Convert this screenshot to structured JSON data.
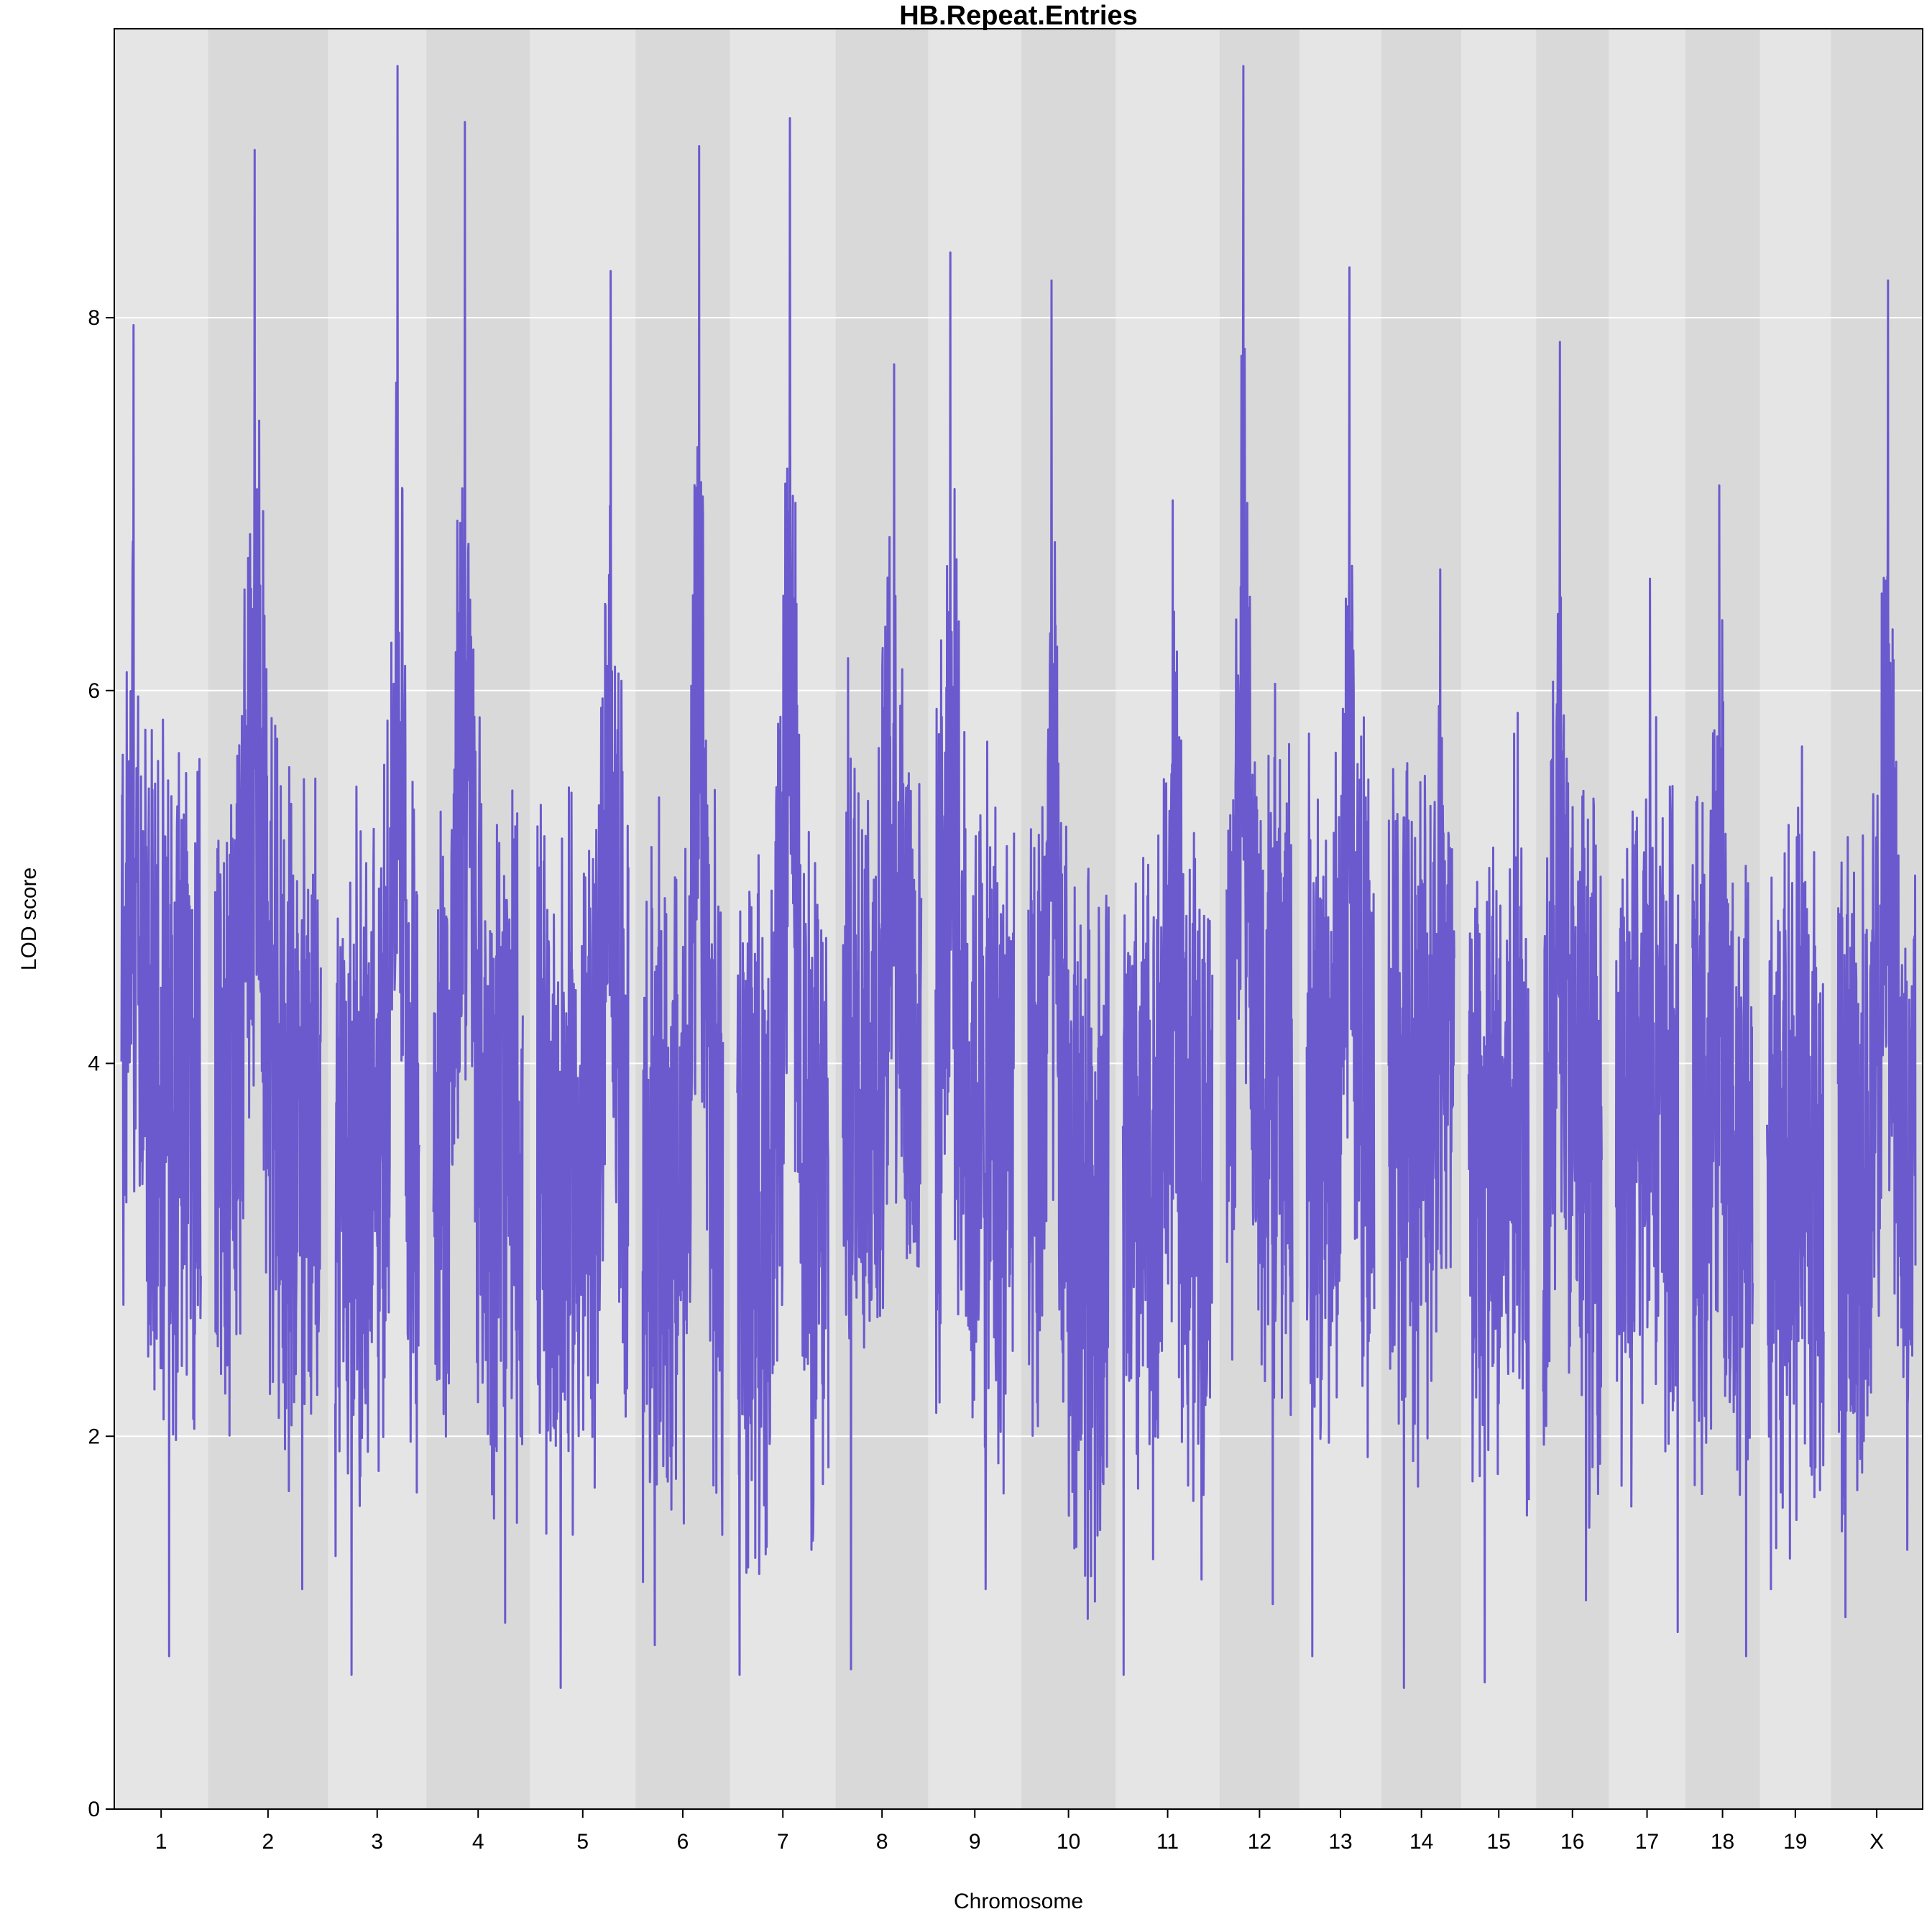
{
  "chart_data": {
    "type": "line",
    "title": "HB.Repeat.Entries",
    "xlabel": "Chromosome",
    "ylabel": "LOD score",
    "ylim": [
      0,
      9.55
    ],
    "yticks": [
      0,
      2,
      4,
      6,
      8
    ],
    "grid": "horizontal",
    "colors": {
      "line": "#6a5acd",
      "band_light": "#e5e5e5",
      "band_dark": "#d9d9d9",
      "gridline": "#ffffff"
    },
    "chromosomes": [
      {
        "label": "1",
        "range": [
          0.5,
          52
        ],
        "peak": 7.96,
        "min": 0.82
      },
      {
        "label": "2",
        "range": [
          52,
          118
        ],
        "peak": 8.9,
        "min": 1.18
      },
      {
        "label": "3",
        "range": [
          118,
          172
        ],
        "peak": 9.35,
        "min": 0.72
      },
      {
        "label": "4",
        "range": [
          172,
          229
        ],
        "peak": 9.05,
        "min": 1.0
      },
      {
        "label": "5",
        "range": [
          229,
          287
        ],
        "peak": 8.25,
        "min": 0.65
      },
      {
        "label": "6",
        "range": [
          287,
          339
        ],
        "peak": 8.92,
        "min": 0.88
      },
      {
        "label": "7",
        "range": [
          339,
          397
        ],
        "peak": 9.07,
        "min": 0.72
      },
      {
        "label": "8",
        "range": [
          397,
          448
        ],
        "peak": 7.75,
        "min": 0.75
      },
      {
        "label": "9",
        "range": [
          448,
          499
        ],
        "peak": 8.35,
        "min": 1.18
      },
      {
        "label": "10",
        "range": [
          499,
          551
        ],
        "peak": 8.2,
        "min": 1.02
      },
      {
        "label": "11",
        "range": [
          551,
          608
        ],
        "peak": 7.02,
        "min": 0.72
      },
      {
        "label": "12",
        "range": [
          608,
          652
        ],
        "peak": 9.35,
        "min": 1.1
      },
      {
        "label": "13",
        "range": [
          652,
          697
        ],
        "peak": 8.27,
        "min": 0.82
      },
      {
        "label": "14",
        "range": [
          697,
          741
        ],
        "peak": 6.65,
        "min": 0.65
      },
      {
        "label": "15",
        "range": [
          741,
          782
        ],
        "peak": 5.88,
        "min": 0.68
      },
      {
        "label": "16",
        "range": [
          782,
          822
        ],
        "peak": 7.87,
        "min": 1.12
      },
      {
        "label": "17",
        "range": [
          822,
          864
        ],
        "peak": 6.6,
        "min": 0.95
      },
      {
        "label": "18",
        "range": [
          864,
          905
        ],
        "peak": 7.1,
        "min": 0.82
      },
      {
        "label": "19",
        "range": [
          905,
          944
        ],
        "peak": 5.7,
        "min": 1.18
      },
      {
        "label": "X",
        "range": [
          944,
          994.5
        ],
        "peak": 8.2,
        "min": 1.03
      }
    ]
  }
}
